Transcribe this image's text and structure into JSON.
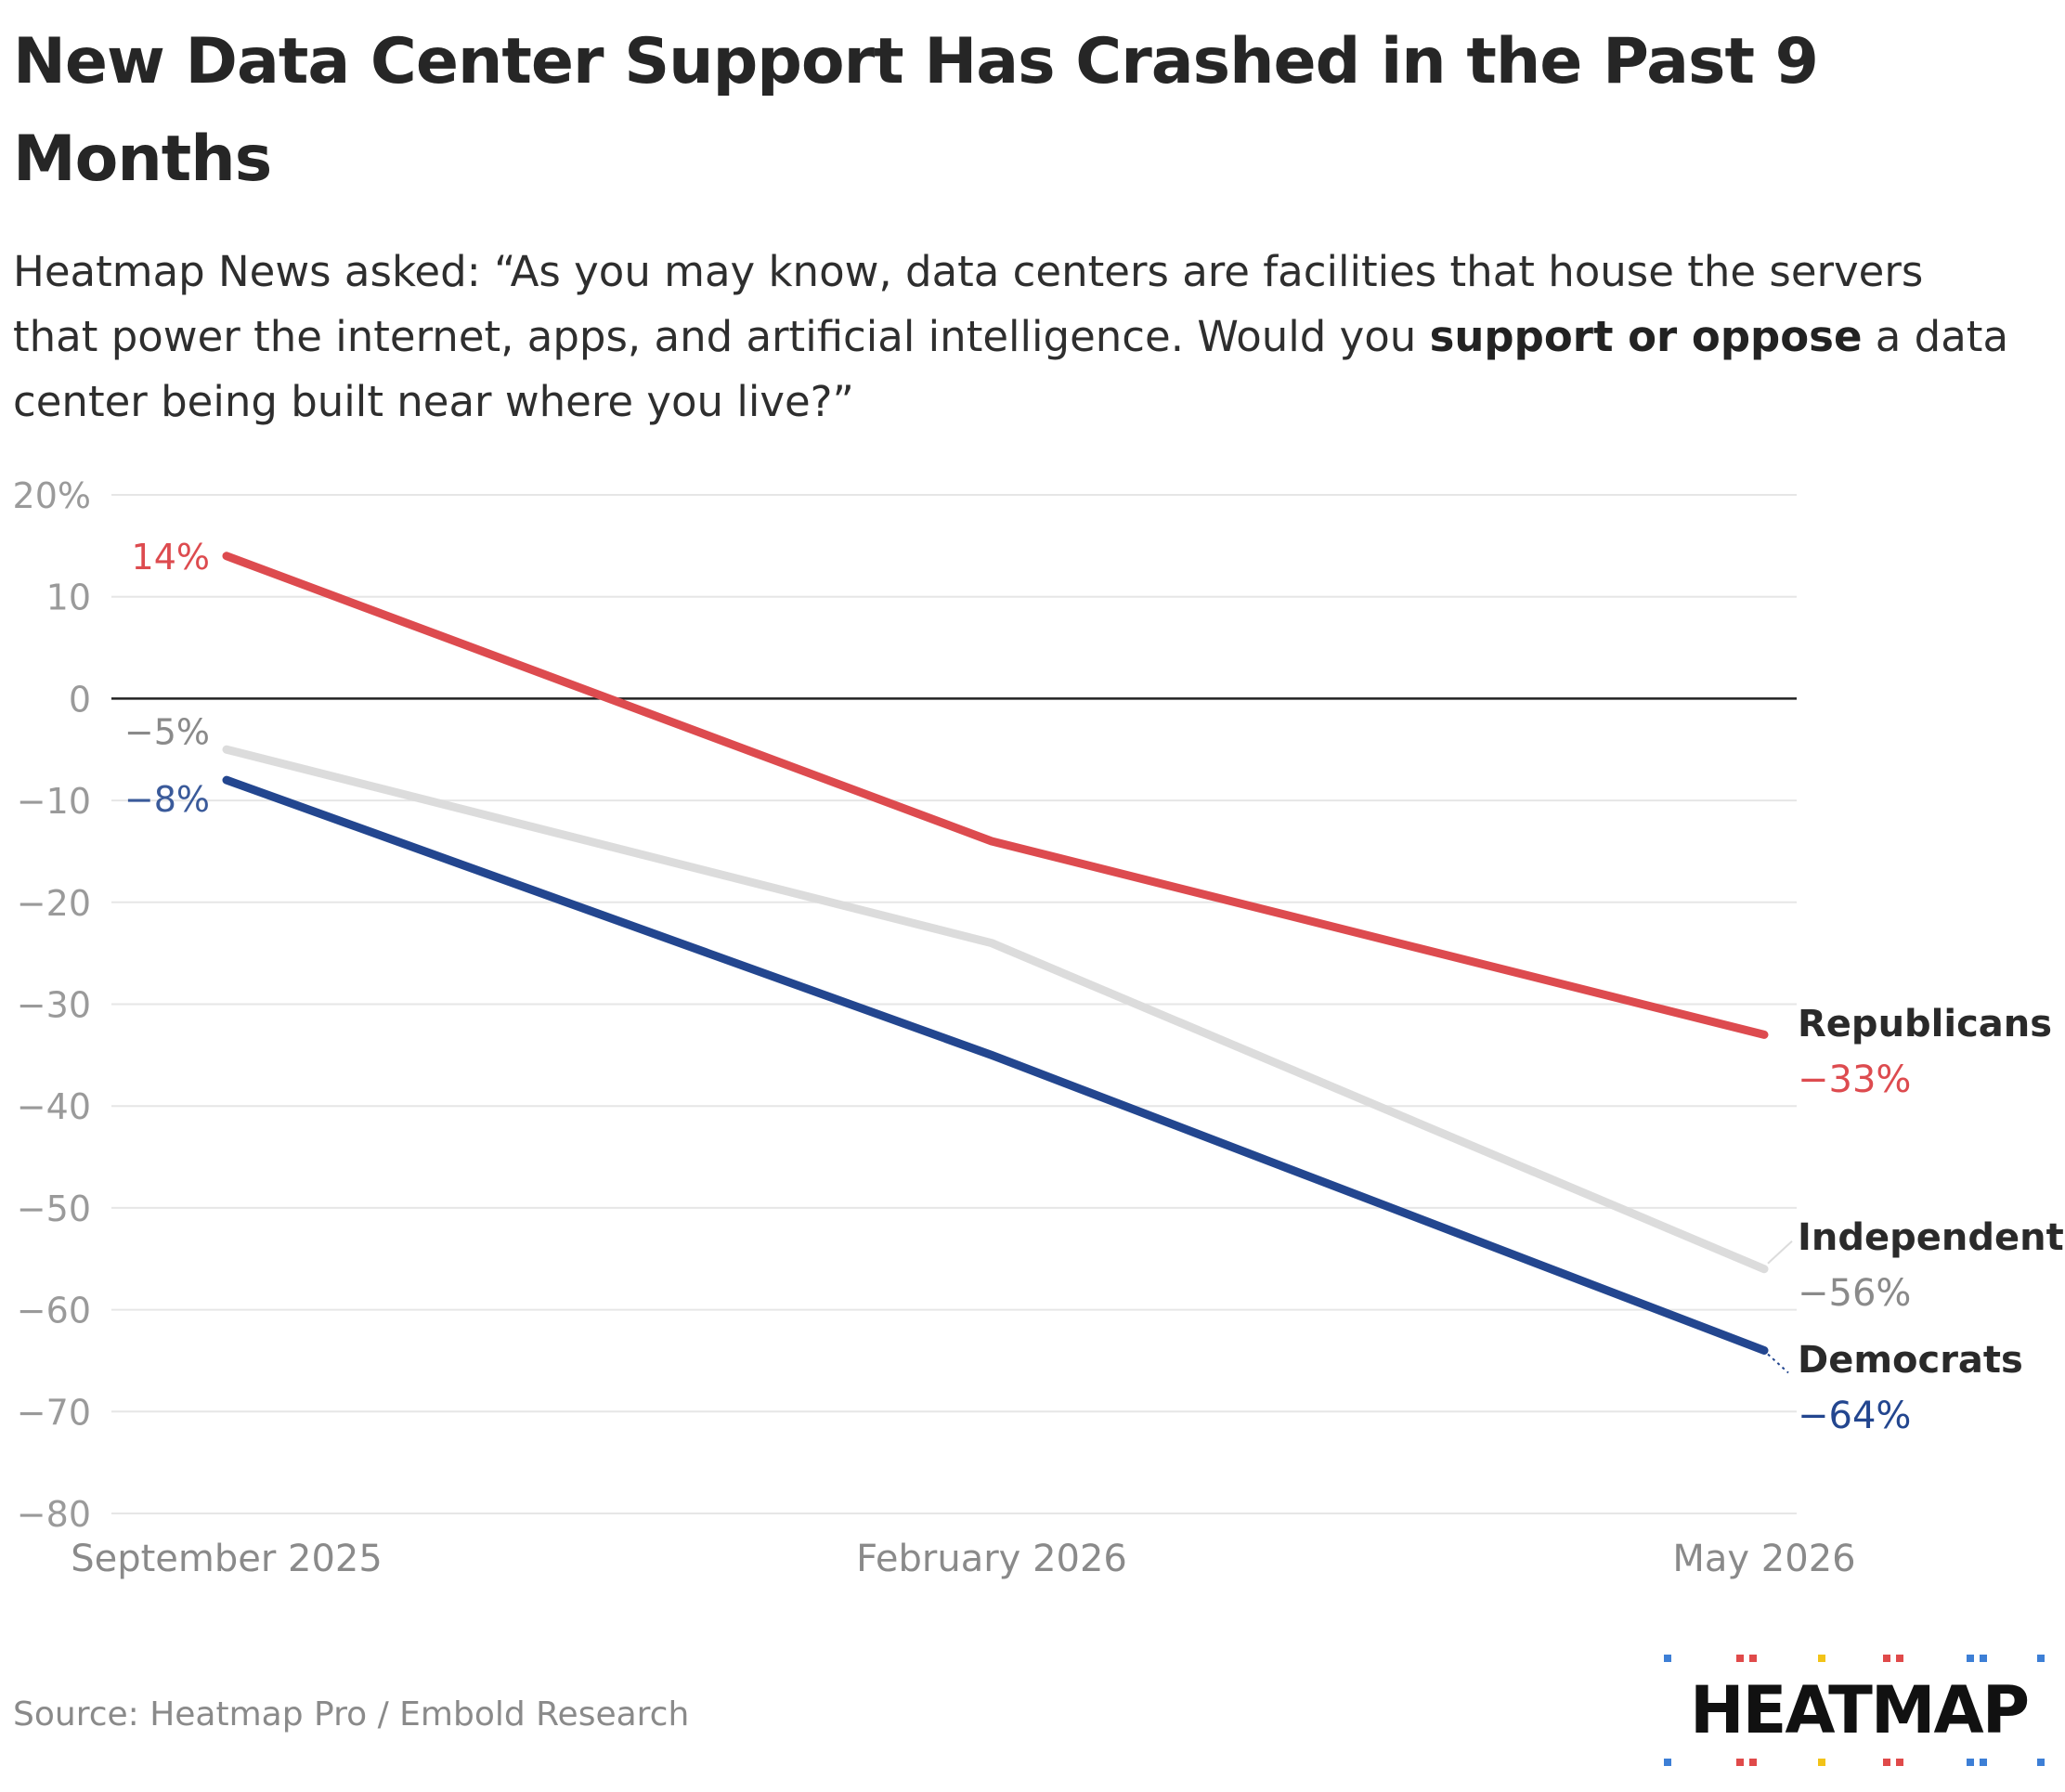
{
  "header": {
    "title": "New Data Center Support Has Crashed in the Past 9 Months",
    "subtitle_parts": [
      "Heatmap News asked: “As you may know, data centers are facilities that house the servers that power the internet, apps, and artificial intelligence. Would you ",
      "support or oppose",
      " a data center being built near where you live?”"
    ]
  },
  "footer": {
    "source": "Source: Heatmap Pro / Embold Research",
    "logo_text": "HEATMAP"
  },
  "colors": {
    "republicans": "#dd4b4f",
    "independents": "#dcdcdc",
    "democrats": "#23468f",
    "grid": "#e6e6e6",
    "zero_line": "#222222",
    "tick": "#9a9a9a",
    "logo_dots": [
      "#3d7fd6",
      "#e04a4a",
      "#f2c318",
      "#e04a4a",
      "#3d7fd6"
    ]
  },
  "chart_data": {
    "type": "line",
    "x": [
      "September 2025",
      "February 2026",
      "May 2026"
    ],
    "ylim": [
      -80,
      20
    ],
    "y_ticks": [
      20,
      10,
      0,
      -10,
      -20,
      -30,
      -40,
      -50,
      -60,
      -70,
      -80
    ],
    "y_tick_labels": [
      "20%",
      "10",
      "0",
      "−10",
      "−20",
      "−30",
      "−40",
      "−50",
      "−60",
      "−70",
      "−80"
    ],
    "grid": true,
    "series": [
      {
        "name": "Republicans",
        "color": "#dd4b4f",
        "values": [
          14,
          -14,
          -33
        ],
        "start_label": "14%",
        "end_label": "−33%"
      },
      {
        "name": "Independents",
        "color": "#dcdcdc",
        "values": [
          -5,
          -24,
          -56
        ],
        "start_label": "−5%",
        "end_label": "−56%"
      },
      {
        "name": "Democrats",
        "color": "#23468f",
        "values": [
          -8,
          -35,
          -64
        ],
        "start_label": "−8%",
        "end_label": "−64%"
      }
    ]
  }
}
